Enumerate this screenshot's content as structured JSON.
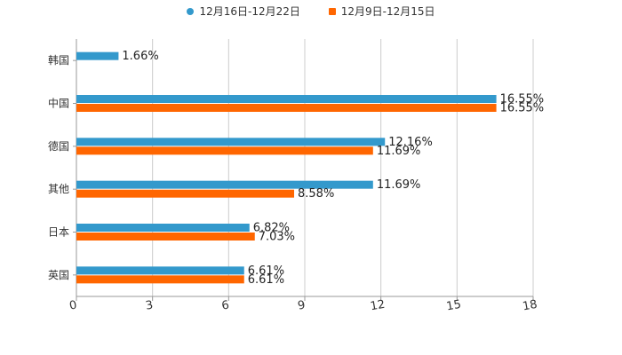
{
  "chart_data": {
    "type": "bar",
    "orientation": "horizontal",
    "categories": [
      "韩国",
      "中国",
      "德国",
      "其他",
      "日本",
      "英国"
    ],
    "series": [
      {
        "name": "12月16日-12月22日",
        "color": "#3399cc",
        "values": [
          1.66,
          16.55,
          12.16,
          11.69,
          6.82,
          6.61
        ],
        "labels": [
          "1.66%",
          "16.55%",
          "12.16%",
          "11.69%",
          "6.82%",
          "6.61%"
        ]
      },
      {
        "name": "12月9日-12月15日",
        "color": "#ff6600",
        "values": [
          null,
          16.55,
          11.69,
          8.58,
          7.03,
          6.61
        ],
        "labels": [
          "",
          "16.55%",
          "11.69%",
          "8.58%",
          "7.03%",
          "6.61%"
        ]
      }
    ],
    "xlim": [
      0,
      18
    ],
    "xticks": [
      0,
      3,
      6,
      9,
      12,
      15,
      18
    ],
    "xtick_labels": [
      "0",
      "3",
      "6",
      "9",
      "12",
      "15",
      "18"
    ],
    "grid": true,
    "legend_position": "top-center",
    "title": "",
    "xlabel": "",
    "ylabel": ""
  }
}
